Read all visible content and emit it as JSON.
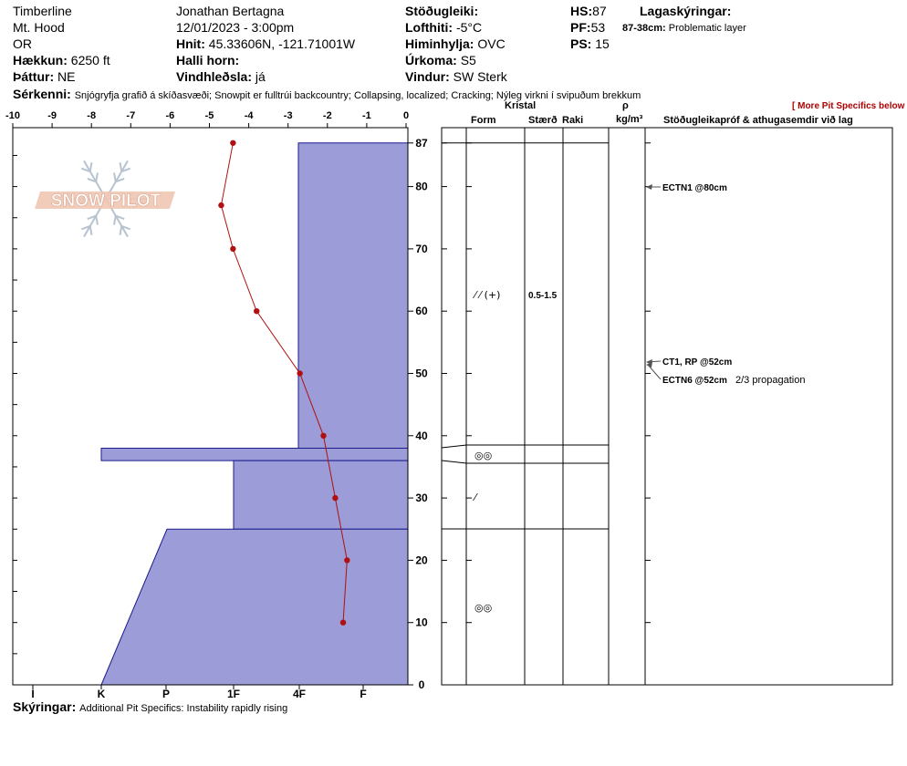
{
  "header": {
    "location": "Timberline",
    "range": "Mt. Hood",
    "state": "OR",
    "elevation_label": "Hækkun:",
    "elevation_value": "6250 ft",
    "aspect_label": "Þáttur:",
    "aspect_value": "NE",
    "observer": "Jonathan Bertagna",
    "datetime": "12/01/2023 - 3:00pm",
    "coords_label": "Hnit:",
    "coords_value": "45.33606N, -121.71001W",
    "slope_label": "Halli horn:",
    "wind_loading_label": "Vindhleðsla:",
    "wind_loading_value": "já",
    "stability_label": "Stöðugleiki:",
    "air_temp_label": "Lofthiti:",
    "air_temp_value": "-5°C",
    "sky_label": "Himinhylja:",
    "sky_value": "OVC",
    "precip_label": "Úrkoma:",
    "precip_value": "S5",
    "wind_label": "Vindur:",
    "wind_value": "SW  Sterk",
    "hs_label": "HS:",
    "hs_value": "87",
    "pf_label": "PF:",
    "pf_value": "53",
    "ps_label": "PS:",
    "ps_value": "15",
    "layer_notes_label": "Lagaskýringar:",
    "layer_note_depth": "87-38cm:",
    "layer_note_text": "Problematic layer",
    "specifics_label": "Sérkenni:",
    "specifics_text": "Snjógryfja grafið á skíðasvæði;  Snowpit er fulltrúi backcountry;  Collapsing, localized;  Cracking;  Nýleg virkni í svipuðum brekkum",
    "more_link": "[ More Pit Specifics below ]",
    "notes_label": "Skýringar:",
    "notes_text": "Additional Pit Specifics: Instability rapidly rising"
  },
  "columns": {
    "crystal": "Kristal",
    "form": "Form",
    "size": "Stærð",
    "moisture": "Raki",
    "rho": "ρ",
    "density_unit": "kg/m³",
    "tests": "Stöðugleikapróf & athugasemdir við lag"
  },
  "logo": {
    "text": "SNOW PILOT"
  },
  "chart_data": {
    "type": "snow-profile",
    "temp_axis": {
      "ticks": [
        -10,
        -9,
        -8,
        -7,
        -6,
        -5,
        -4,
        -3,
        -2,
        -1,
        0
      ],
      "range": [
        -10,
        0
      ]
    },
    "depth_axis": {
      "ticks": [
        0,
        10,
        20,
        30,
        40,
        50,
        60,
        70,
        80,
        87
      ],
      "range": [
        0,
        87
      ]
    },
    "hardness_axis": {
      "labels": [
        "I",
        "K",
        "P",
        "1F",
        "4F",
        "F"
      ]
    },
    "temperature_profile": [
      {
        "depth": 87,
        "temp": -4.4
      },
      {
        "depth": 77,
        "temp": -4.7
      },
      {
        "depth": 70,
        "temp": -4.4
      },
      {
        "depth": 60,
        "temp": -3.8
      },
      {
        "depth": 50,
        "temp": -2.7
      },
      {
        "depth": 40,
        "temp": -2.1
      },
      {
        "depth": 30,
        "temp": -1.8
      },
      {
        "depth": 20,
        "temp": -1.5
      },
      {
        "depth": 10,
        "temp": -1.6
      }
    ],
    "hardness_profile": [
      {
        "top": 87,
        "bottom": 38,
        "hardness_top": "4F-",
        "hardness_bottom": "4F-"
      },
      {
        "top": 38,
        "bottom": 36,
        "hardness_top": "K",
        "hardness_bottom": "K"
      },
      {
        "top": 36,
        "bottom": 25,
        "hardness_top": "1F",
        "hardness_bottom": "1F"
      },
      {
        "top": 25,
        "bottom": 0,
        "hardness_top": "P-",
        "hardness_bottom": "K"
      }
    ],
    "layers": [
      {
        "top": 87,
        "bottom": 38.5,
        "form": "⁄ ⁄ (+)",
        "size": "0.5-1.5"
      },
      {
        "top": 38.5,
        "bottom": 35.5,
        "form": "◎◎",
        "size": ""
      },
      {
        "top": 35.5,
        "bottom": 25,
        "form": "⁄",
        "size": ""
      },
      {
        "top": 25,
        "bottom": 0,
        "form": "◎◎",
        "size": ""
      }
    ],
    "tests": [
      {
        "depth": 80,
        "label": "ECTN1 @80cm",
        "comment": ""
      },
      {
        "depth": 52,
        "label": "CT1, RP @52cm",
        "comment": ""
      },
      {
        "depth": 52,
        "label": "ECTN6 @52cm",
        "comment": "2/3 propagation"
      }
    ]
  }
}
